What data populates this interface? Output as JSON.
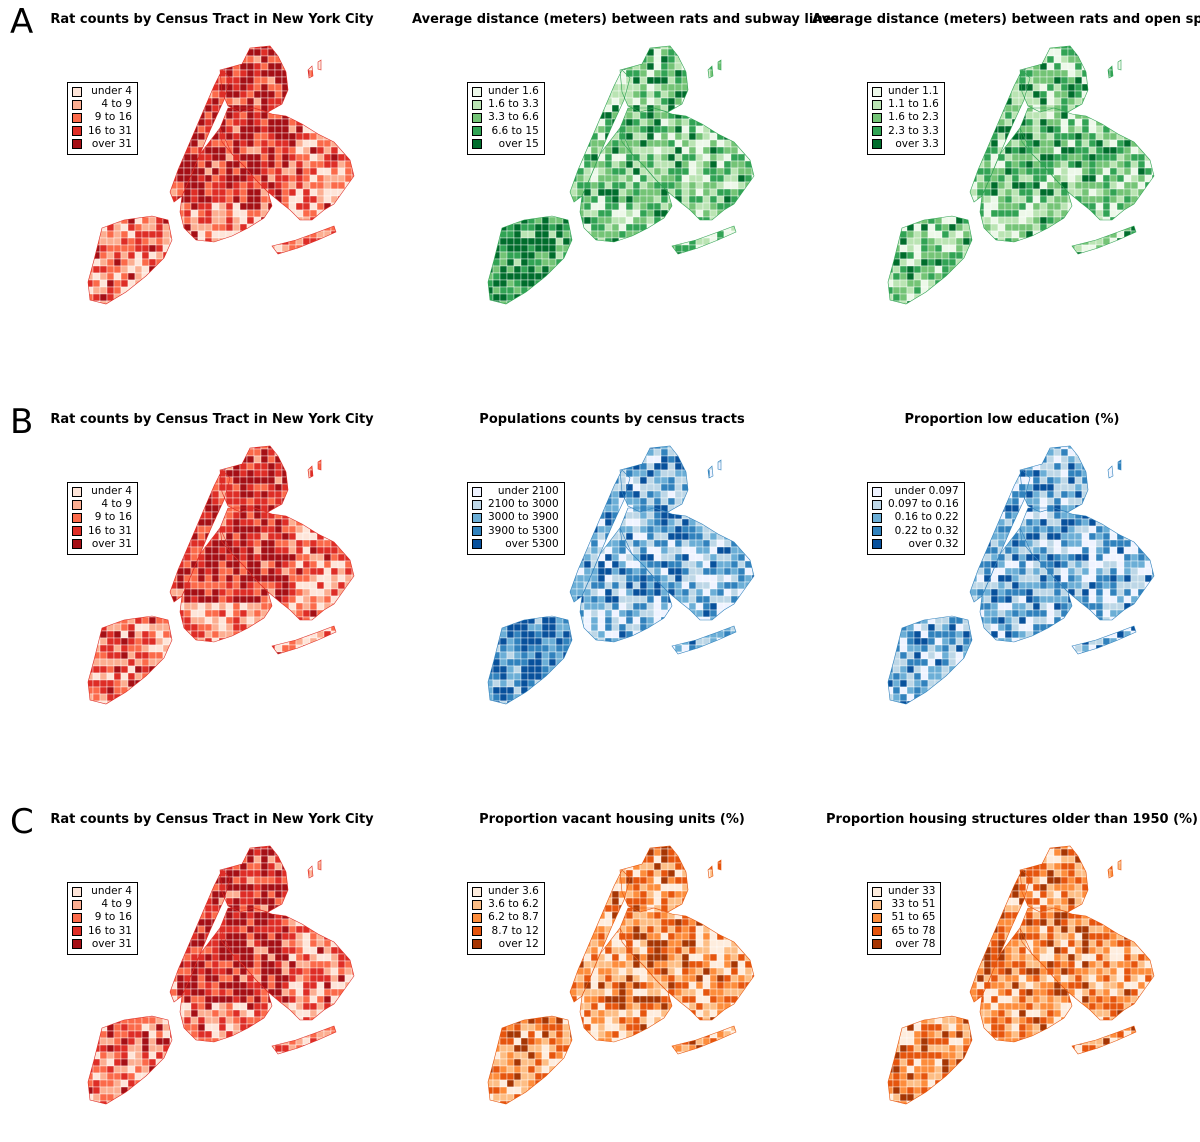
{
  "row_letters": [
    "A",
    "B",
    "C"
  ],
  "panels": [
    {
      "title": "Rat counts by Census Tract in New York City",
      "legend": [
        {
          "label": "under 4",
          "color": "#fee5d9"
        },
        {
          "label": "4 to 9",
          "color": "#fcae91"
        },
        {
          "label": "9 to 16",
          "color": "#fb6a4a"
        },
        {
          "label": "16 to 31",
          "color": "#de2d26"
        },
        {
          "label": "over 31",
          "color": "#a50f15"
        }
      ]
    },
    {
      "title": "Average distance (meters) between rats and subway lines",
      "legend": [
        {
          "label": "under 1.6",
          "color": "#edf8e9"
        },
        {
          "label": "1.6 to 3.3",
          "color": "#bae4b3"
        },
        {
          "label": "3.3 to 6.6",
          "color": "#74c476"
        },
        {
          "label": "6.6 to 15",
          "color": "#31a354"
        },
        {
          "label": "over 15",
          "color": "#006d2c"
        }
      ]
    },
    {
      "title": "Average distance (meters) between rats and open spaces",
      "legend": [
        {
          "label": "under 1.1",
          "color": "#edf8e9"
        },
        {
          "label": "1.1 to 1.6",
          "color": "#bae4b3"
        },
        {
          "label": "1.6 to 2.3",
          "color": "#74c476"
        },
        {
          "label": "2.3 to 3.3",
          "color": "#31a354"
        },
        {
          "label": "over 3.3",
          "color": "#006d2c"
        }
      ]
    },
    {
      "title": "Rat counts by Census Tract in New York City",
      "legend": [
        {
          "label": "under 4",
          "color": "#fee5d9"
        },
        {
          "label": "4 to 9",
          "color": "#fcae91"
        },
        {
          "label": "9 to 16",
          "color": "#fb6a4a"
        },
        {
          "label": "16 to 31",
          "color": "#de2d26"
        },
        {
          "label": "over 31",
          "color": "#a50f15"
        }
      ]
    },
    {
      "title": "Populations counts by census tracts",
      "legend": [
        {
          "label": "under 2100",
          "color": "#eff3ff"
        },
        {
          "label": "2100 to 3000",
          "color": "#bdd7e7"
        },
        {
          "label": "3000 to 3900",
          "color": "#6baed6"
        },
        {
          "label": "3900 to 5300",
          "color": "#3182bd"
        },
        {
          "label": "over 5300",
          "color": "#08519c"
        }
      ]
    },
    {
      "title": "Proportion low education (%)",
      "legend": [
        {
          "label": "under 0.097",
          "color": "#eff3ff"
        },
        {
          "label": "0.097 to 0.16",
          "color": "#bdd7e7"
        },
        {
          "label": "0.16 to 0.22",
          "color": "#6baed6"
        },
        {
          "label": "0.22 to 0.32",
          "color": "#3182bd"
        },
        {
          "label": "over 0.32",
          "color": "#08519c"
        }
      ]
    },
    {
      "title": "Rat counts by Census Tract in New York City",
      "legend": [
        {
          "label": "under 4",
          "color": "#fee5d9"
        },
        {
          "label": "4 to 9",
          "color": "#fcae91"
        },
        {
          "label": "9 to 16",
          "color": "#fb6a4a"
        },
        {
          "label": "16 to 31",
          "color": "#de2d26"
        },
        {
          "label": "over 31",
          "color": "#a50f15"
        }
      ]
    },
    {
      "title": "Proportion vacant housing units (%)",
      "legend": [
        {
          "label": "under 3.6",
          "color": "#feedde"
        },
        {
          "label": "3.6 to 6.2",
          "color": "#fdbe85"
        },
        {
          "label": "6.2 to 8.7",
          "color": "#fd8d3c"
        },
        {
          "label": "8.7 to 12",
          "color": "#e6550d"
        },
        {
          "label": "over 12",
          "color": "#a63603"
        }
      ]
    },
    {
      "title": "Proportion housing structures older than 1950 (%)",
      "legend": [
        {
          "label": "under 33",
          "color": "#feedde"
        },
        {
          "label": "33 to 51",
          "color": "#fdbe85"
        },
        {
          "label": "51 to 65",
          "color": "#fd8d3c"
        },
        {
          "label": "65 to 78",
          "color": "#e6550d"
        },
        {
          "label": "over 78",
          "color": "#a63603"
        }
      ]
    }
  ]
}
